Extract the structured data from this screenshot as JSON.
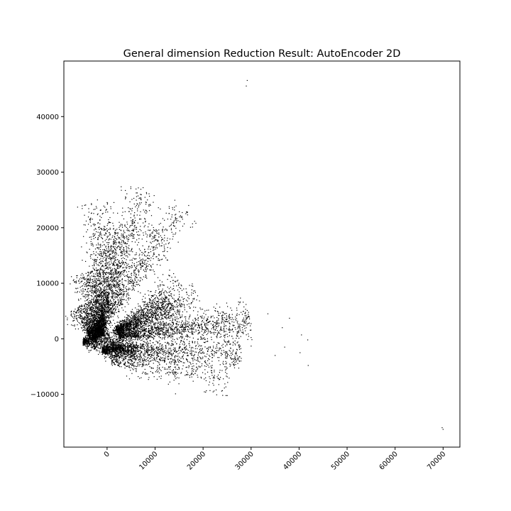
{
  "chart_data": {
    "type": "scatter",
    "title": "General dimension Reduction Result: AutoEncoder 2D",
    "xlabel": "",
    "ylabel": "",
    "xlim": [
      -9000,
      73500
    ],
    "ylim": [
      -19500,
      50000
    ],
    "grid": false,
    "legend": "none",
    "point_color": "#000000",
    "x_ticks": [
      0,
      10000,
      20000,
      30000,
      40000,
      50000,
      60000,
      70000
    ],
    "x_tick_labels": [
      "0",
      "10000",
      "20000",
      "30000",
      "40000",
      "50000",
      "60000",
      "70000"
    ],
    "y_ticks": [
      -10000,
      0,
      10000,
      20000,
      30000,
      40000
    ],
    "y_tick_labels": [
      "−10000",
      "0",
      "10000",
      "20000",
      "30000",
      "40000"
    ],
    "series": [
      {
        "values_note": "",
        "clusters": [
          {
            "x0": -2500,
            "y0": 0,
            "x1": 16000,
            "y1": 23500,
            "n": 520
          },
          {
            "x0": -3000,
            "y0": 1500,
            "x1": 11000,
            "y1": 19500,
            "n": 380
          },
          {
            "x0": -2000,
            "y0": 1000,
            "x1": 7500,
            "y1": 27000,
            "n": 520
          },
          {
            "x0": -2000,
            "y0": 500,
            "x1": 4500,
            "y1": 20000,
            "n": 300
          },
          {
            "x0": -1000,
            "y0": 500,
            "x1": 800,
            "y1": 20000,
            "n": 700
          },
          {
            "x0": -1500,
            "y0": 1000,
            "x1": -2200,
            "y1": 24500,
            "n": 500
          },
          {
            "x0": -1500,
            "y0": 1000,
            "x1": -4200,
            "y1": 12000,
            "n": 600
          },
          {
            "x0": -2500,
            "y0": 0,
            "x1": -5500,
            "y1": 6000,
            "n": 700
          },
          {
            "x0": 1500,
            "y0": 1000,
            "x1": 15500,
            "y1": 10000,
            "n": 350
          },
          {
            "x0": 2000,
            "y0": 1000,
            "x1": 19000,
            "y1": 7500,
            "n": 350
          },
          {
            "x0": 2000,
            "y0": 1500,
            "x1": 13000,
            "y1": 7000,
            "n": 650
          },
          {
            "x0": 2000,
            "y0": 1500,
            "x1": 16000,
            "y1": 4200,
            "n": 350
          },
          {
            "x0": 2500,
            "y0": 500,
            "x1": 30000,
            "y1": 3000,
            "n": 1200
          },
          {
            "x0": 1000,
            "y0": -1500,
            "x1": 28000,
            "y1": -3000,
            "n": 900
          },
          {
            "x0": -5000,
            "y0": -500,
            "x1": 3000,
            "y1": -500,
            "n": 700
          },
          {
            "x0": -1000,
            "y0": -2000,
            "x1": 6000,
            "y1": -2500,
            "n": 700
          },
          {
            "x0": 3000,
            "y0": -2000,
            "x1": 26000,
            "y1": -8000,
            "n": 300
          },
          {
            "x0": 1000,
            "y0": -4000,
            "x1": 15000,
            "y1": -6000,
            "n": 200
          },
          {
            "x0": -4000,
            "y0": 1000,
            "x1": 0,
            "y1": 2000,
            "n": 400
          }
        ],
        "outliers": [
          {
            "x": 29200,
            "y": 46500
          },
          {
            "x": 29000,
            "y": 45500
          },
          {
            "x": 69800,
            "y": -16000
          },
          {
            "x": 70000,
            "y": -16300
          },
          {
            "x": 41900,
            "y": -4800
          },
          {
            "x": 41800,
            "y": -200
          },
          {
            "x": 40500,
            "y": 700
          },
          {
            "x": 40200,
            "y": -2500
          },
          {
            "x": 38000,
            "y": 3700
          },
          {
            "x": 36500,
            "y": 2000
          },
          {
            "x": 33500,
            "y": 4500
          },
          {
            "x": 17000,
            "y": 24000
          },
          {
            "x": 17800,
            "y": 20700
          },
          {
            "x": 18500,
            "y": 20800
          },
          {
            "x": -2000,
            "y": 25000
          },
          {
            "x": 7500,
            "y": 27200
          },
          {
            "x": 3800,
            "y": 25200
          },
          {
            "x": 35000,
            "y": -3000
          },
          {
            "x": 37000,
            "y": -1500
          }
        ]
      }
    ]
  }
}
